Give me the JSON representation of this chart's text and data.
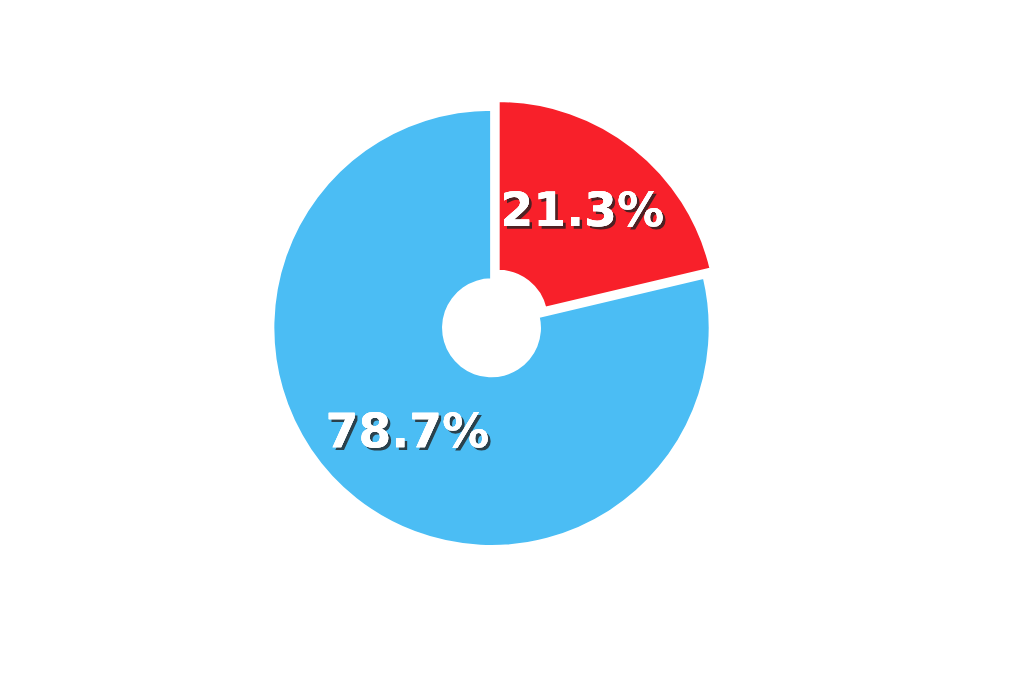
{
  "chart_data": {
    "type": "donut",
    "categories": [
      null,
      null
    ],
    "values": [
      21.3,
      78.7
    ],
    "colors": [
      "#f8202a",
      "#4bbdf4"
    ],
    "value_labels": [
      "21.3%",
      "78.7%"
    ],
    "legend": false
  }
}
